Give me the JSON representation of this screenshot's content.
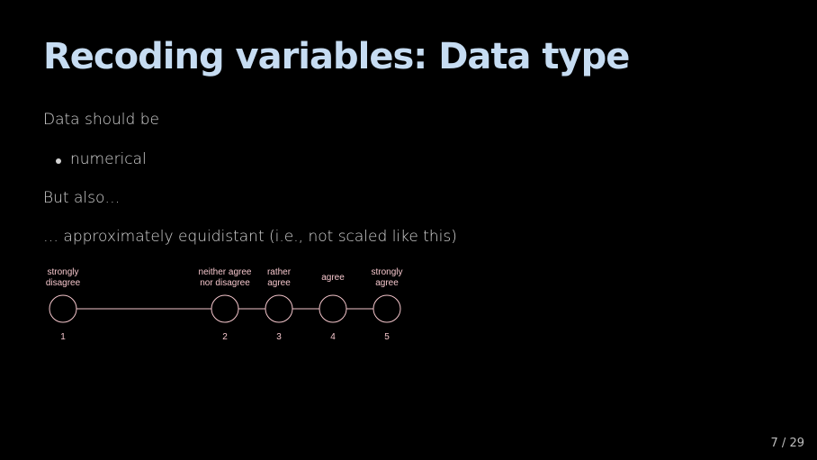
{
  "slide": {
    "title": "Recoding variables: Data type",
    "intro": "Data should be",
    "bullets": [
      "numerical"
    ],
    "but_also": "But also…",
    "equidistant": "… approximately equidistant (i.e., not scaled like this)"
  },
  "diagram": {
    "stroke_color": "#f5c6cc",
    "nodes": [
      {
        "lines": [
          "strongly",
          "disagree"
        ],
        "value": "1",
        "position": 1
      },
      {
        "lines": [
          "neither agree",
          "nor disagree"
        ],
        "value": "2",
        "position": 4
      },
      {
        "lines": [
          "rather",
          "agree"
        ],
        "value": "3",
        "position": 5
      },
      {
        "lines": [
          "agree"
        ],
        "value": "4",
        "position": 6
      },
      {
        "lines": [
          "strongly",
          "agree"
        ],
        "value": "5",
        "position": 7
      }
    ]
  },
  "footer": {
    "page": "7 / 29"
  }
}
